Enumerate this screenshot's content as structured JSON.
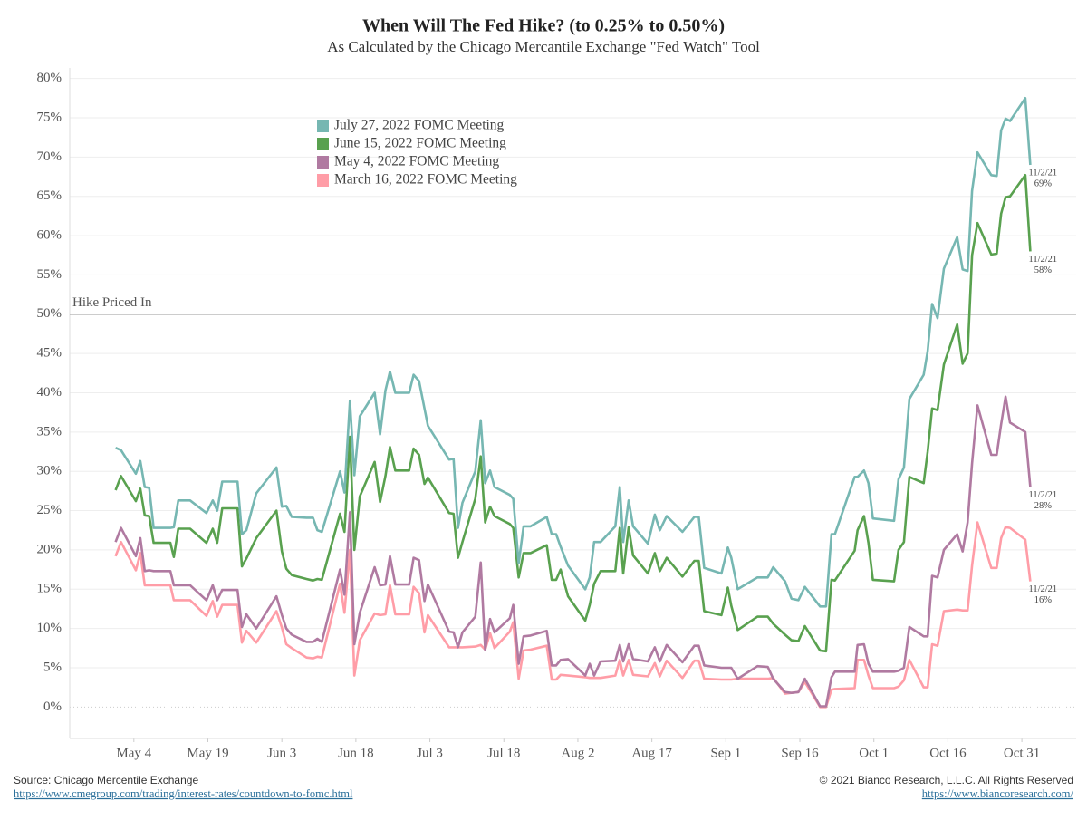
{
  "chart_data": {
    "type": "line",
    "title": "When Will The Fed Hike? (to 0.25% to 0.50%)",
    "subtitle": "As Calculated by the Chicago Mercantile Exchange \"Fed Watch\" Tool",
    "x": [
      120.3,
      121.4,
      124.4,
      125.3,
      126.2,
      127.1,
      128.0,
      131.4,
      132.1,
      133.0,
      135.4,
      138.7,
      140.0,
      140.9,
      141.9,
      145.0,
      145.9,
      146.8,
      148.8,
      152.9,
      154.0,
      154.9,
      156.0,
      159.0,
      160.3,
      161.2,
      162.1,
      165.8,
      166.7,
      167.8,
      168.7,
      169.8,
      172.8,
      173.9,
      175.0,
      175.9,
      177.0,
      179.8,
      180.7,
      181.8,
      182.9,
      183.6,
      187.9,
      188.8,
      189.7,
      190.6,
      193.2,
      194.3,
      195.2,
      196.2,
      197.1,
      200.2,
      200.9,
      202.0,
      203.0,
      204.4,
      207.7,
      208.7,
      209.6,
      210.5,
      212.0,
      215.5,
      216.4,
      217.3,
      218.6,
      221.6,
      222.5,
      223.2,
      224.3,
      225.2,
      228.2,
      229.6,
      230.6,
      232.0,
      235.2,
      237.6,
      238.5,
      239.6,
      243.1,
      244.4,
      245.1,
      246.4,
      250.4,
      252.5,
      253.6,
      256.0,
      257.3,
      258.7,
      260.0,
      263.1,
      264.3,
      265.4,
      266.1,
      270.1,
      270.7,
      272.0,
      272.9,
      273.8,
      278.1,
      279.0,
      280.1,
      281.2,
      284.1,
      284.9,
      285.8,
      286.9,
      288.2,
      290.9,
      292.0,
      293.0,
      293.9,
      295.0,
      297.8,
      298.9,
      299.8,
      300.7,
      301.6,
      304.7,
      305.7
    ],
    "series": [
      {
        "name": "July 27, 2022 FOMC Meeting",
        "color": "#76b7b2",
        "end_date_label": "11/2/21",
        "end_value_label": "69%",
        "values": [
          33,
          32.7,
          29.7,
          31.3,
          28,
          27.9,
          22.8,
          22.8,
          22.9,
          26.3,
          26.3,
          24.7,
          26.3,
          25,
          28.7,
          28.7,
          22,
          22.5,
          27.2,
          30.5,
          25.5,
          25.6,
          24.2,
          24.1,
          24.1,
          22.5,
          22.3,
          30,
          27.3,
          39,
          29.5,
          37,
          40,
          34.7,
          40.3,
          42.7,
          40,
          40,
          42.3,
          41.5,
          38,
          35.8,
          31.5,
          31.6,
          22.8,
          26,
          30,
          36.5,
          28.5,
          30.1,
          28,
          27,
          26.5,
          18.3,
          23,
          23,
          24.2,
          22,
          22,
          20.4,
          18,
          15,
          16.5,
          21,
          21,
          23,
          28,
          21,
          26.3,
          23,
          20.8,
          24.5,
          22.5,
          24.3,
          22.3,
          24.2,
          24.2,
          17.7,
          17,
          20.3,
          19,
          15,
          16.5,
          16.5,
          17.8,
          16,
          13.8,
          13.6,
          15.3,
          12.8,
          12.8,
          22,
          22,
          29.3,
          29.3,
          30.1,
          28.5,
          24,
          23.7,
          29,
          30.5,
          39.2,
          42.3,
          45.3,
          51.3,
          49.5,
          55.8,
          59.8,
          55.7,
          55.5,
          65.7,
          70.6,
          67.7,
          67.6,
          73.4,
          74.9,
          74.6,
          77.5,
          69
        ]
      },
      {
        "name": "June 15, 2022 FOMC Meeting",
        "color": "#59a14f",
        "end_date_label": "11/2/21",
        "end_value_label": "58%",
        "values": [
          27.6,
          29.4,
          26.2,
          27.8,
          24.4,
          24.3,
          20.9,
          20.9,
          19.1,
          22.7,
          22.7,
          20.9,
          22.7,
          20.9,
          25.3,
          25.3,
          17.9,
          18.9,
          21.5,
          25,
          19.8,
          17.6,
          16.8,
          16.3,
          16.1,
          16.3,
          16.2,
          24.6,
          22.3,
          34.4,
          20,
          26.8,
          31.2,
          26.1,
          29.4,
          33.1,
          30.1,
          30.1,
          32.9,
          32.1,
          28.4,
          29.2,
          24.7,
          24.6,
          19,
          21,
          26.5,
          31.9,
          23.5,
          25.5,
          24.3,
          23.3,
          22.8,
          16.5,
          19.6,
          19.6,
          20.6,
          16.2,
          16.2,
          17.5,
          14.1,
          11,
          13,
          15.7,
          17.3,
          17.3,
          22.8,
          17,
          22.9,
          19.3,
          17,
          19.6,
          17.3,
          19,
          16.6,
          18.6,
          18.6,
          12.2,
          11.7,
          15.2,
          12.9,
          9.8,
          11.5,
          11.5,
          10.6,
          9.2,
          8.5,
          8.4,
          10.3,
          7.2,
          7.1,
          16.2,
          16.1,
          19.9,
          22.5,
          24.3,
          20.9,
          16.2,
          16,
          20,
          21,
          29.3,
          28.5,
          32.5,
          38,
          37.8,
          43.6,
          48.7,
          43.7,
          45,
          57.5,
          61.6,
          57.6,
          57.7,
          62.8,
          64.9,
          65,
          67.7,
          58
        ]
      },
      {
        "name": "May 4, 2022 FOMC Meeting",
        "color": "#b07aa1",
        "end_date_label": "11/2/21",
        "end_value_label": "28%",
        "values": [
          21,
          22.8,
          19.2,
          21.5,
          17.3,
          17.4,
          17.3,
          17.3,
          15.5,
          15.5,
          15.5,
          13.6,
          15.5,
          13.6,
          14.9,
          14.9,
          10.2,
          11.8,
          10,
          14.1,
          11.7,
          10,
          9.2,
          8.3,
          8.3,
          8.7,
          8.3,
          17.5,
          14.3,
          24.8,
          8,
          12,
          17.8,
          15.5,
          15.6,
          19.2,
          15.6,
          15.6,
          19,
          18.7,
          13.5,
          15.6,
          9.6,
          9.5,
          7.6,
          9.5,
          11.5,
          18.4,
          7.3,
          11.2,
          9.5,
          11.3,
          13,
          5.5,
          9,
          9.1,
          9.7,
          5.3,
          5.3,
          6,
          6.1,
          4,
          5.5,
          4,
          5.8,
          5.9,
          7.9,
          5.8,
          8,
          6.1,
          5.8,
          7.6,
          5.8,
          7.9,
          5.7,
          7.8,
          7.8,
          5.3,
          5,
          5,
          5,
          3.6,
          5.2,
          5.1,
          3.6,
          1.9,
          1.8,
          1.9,
          3.6,
          0.1,
          0.1,
          3.8,
          4.5,
          4.5,
          7.9,
          8,
          5.5,
          4.5,
          4.5,
          4.6,
          5,
          10.2,
          9,
          9,
          16.7,
          16.5,
          20,
          22,
          19.8,
          23.5,
          31,
          38.4,
          32.1,
          32.1,
          36,
          39.5,
          36.2,
          35,
          28
        ]
      },
      {
        "name": "March 16, 2022 FOMC Meeting",
        "color": "#ff9da7",
        "end_date_label": "11/2/21",
        "end_value_label": "16%",
        "values": [
          19.2,
          21,
          17.4,
          19.6,
          15.5,
          15.5,
          15.5,
          15.5,
          13.6,
          13.6,
          13.6,
          11.6,
          13.5,
          11.5,
          13,
          13,
          8.2,
          9.7,
          8.2,
          12.2,
          10.1,
          8,
          7.5,
          6.3,
          6.2,
          6.4,
          6.3,
          15.7,
          12,
          20,
          4,
          8.5,
          11.9,
          11.7,
          11.8,
          15.5,
          11.8,
          11.8,
          15.3,
          14.5,
          9.5,
          11.7,
          7.6,
          7.6,
          7.6,
          7.6,
          7.7,
          7.9,
          7.3,
          9.4,
          7.5,
          9.6,
          10.8,
          3.6,
          7.2,
          7.3,
          7.8,
          3.5,
          3.5,
          4.1,
          4,
          3.8,
          3.7,
          3.7,
          3.7,
          4,
          6,
          4,
          6,
          4.1,
          3.9,
          5.6,
          3.9,
          5.9,
          3.7,
          5.9,
          5.9,
          3.6,
          3.5,
          3.5,
          3.5,
          3.6,
          3.6,
          3.6,
          3.7,
          1.7,
          1.8,
          1.9,
          3.2,
          0,
          0,
          2.2,
          2.3,
          2.4,
          6,
          6,
          4,
          2.4,
          2.4,
          2.6,
          3.4,
          6,
          2.5,
          2.5,
          8,
          7.8,
          12.2,
          12.4,
          12.3,
          12.3,
          18,
          23.5,
          17.7,
          17.7,
          21.5,
          22.9,
          22.8,
          21.3,
          16
        ]
      }
    ],
    "xlim": [
      111,
      315
    ],
    "xticks": [
      {
        "value": 124,
        "label": "May 4"
      },
      {
        "value": 139,
        "label": "May 19"
      },
      {
        "value": 154,
        "label": "Jun 3"
      },
      {
        "value": 169,
        "label": "Jun 18"
      },
      {
        "value": 184,
        "label": "Jul 3"
      },
      {
        "value": 199,
        "label": "Jul 18"
      },
      {
        "value": 214,
        "label": "Aug 2"
      },
      {
        "value": 229,
        "label": "Aug 17"
      },
      {
        "value": 244,
        "label": "Sep 1"
      },
      {
        "value": 259,
        "label": "Sep 16"
      },
      {
        "value": 274,
        "label": "Oct 1"
      },
      {
        "value": 289,
        "label": "Oct 16"
      },
      {
        "value": 304,
        "label": "Oct 31"
      }
    ],
    "ylim": [
      -4,
      81
    ],
    "yticks": [
      {
        "value": 0,
        "label": "0%"
      },
      {
        "value": 5,
        "label": "5%"
      },
      {
        "value": 10,
        "label": "10%"
      },
      {
        "value": 15,
        "label": "15%"
      },
      {
        "value": 20,
        "label": "20%"
      },
      {
        "value": 25,
        "label": "25%"
      },
      {
        "value": 30,
        "label": "30%"
      },
      {
        "value": 35,
        "label": "35%"
      },
      {
        "value": 40,
        "label": "40%"
      },
      {
        "value": 45,
        "label": "45%"
      },
      {
        "value": 50,
        "label": "50%"
      },
      {
        "value": 55,
        "label": "55%"
      },
      {
        "value": 60,
        "label": "60%"
      },
      {
        "value": 65,
        "label": "65%"
      },
      {
        "value": 70,
        "label": "70%"
      },
      {
        "value": 75,
        "label": "75%"
      },
      {
        "value": 80,
        "label": "80%"
      }
    ],
    "grid": true,
    "reference_line": {
      "value": 50,
      "label": "Hike Priced In",
      "color": "#999999"
    },
    "legend": "top-left"
  },
  "footer": {
    "source": "Source: Chicago Mercentile Exchange",
    "source_url": "https://www.cmegroup.com/trading/interest-rates/countdown-to-fomc.html",
    "copyright": "© 2021 Bianco Research, L.L.C. All Rights Reserved",
    "site_url": "https://www.biancoresearch.com/"
  }
}
